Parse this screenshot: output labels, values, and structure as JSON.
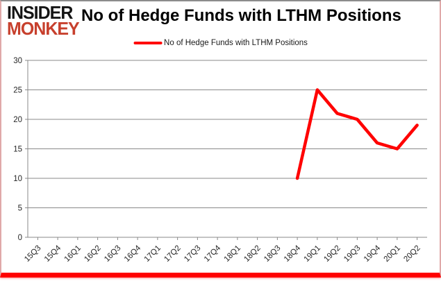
{
  "header": {
    "logo_line1": "INSIDER",
    "logo_line2": "MONKEY",
    "title": "No of Hedge Funds with LTHM Positions"
  },
  "legend": {
    "label": "No of Hedge Funds with LTHM Positions",
    "line_color": "#ff0000"
  },
  "colors": {
    "series_red": "#ff0000",
    "gridline": "#898989",
    "axis": "#898989",
    "tick_label": "#262626",
    "frame_bottom_bar": "#ff0000",
    "frame_top_line": "#8c8c8c",
    "frame_side_line": "#e0a8a8",
    "logo_black": "#151515",
    "logo_red": "#c7402d"
  },
  "chart_data": {
    "type": "line",
    "title": "No of Hedge Funds with LTHM Positions",
    "categories": [
      "15Q3",
      "15Q4",
      "16Q1",
      "16Q2",
      "16Q3",
      "16Q4",
      "17Q1",
      "17Q2",
      "17Q3",
      "17Q4",
      "18Q1",
      "18Q2",
      "18Q3",
      "18Q4",
      "19Q1",
      "19Q2",
      "19Q3",
      "19Q4",
      "20Q1",
      "20Q2"
    ],
    "series": [
      {
        "name": "No of Hedge Funds with LTHM Positions",
        "color": "#ff0000",
        "values": [
          null,
          null,
          null,
          null,
          null,
          null,
          null,
          null,
          null,
          null,
          null,
          null,
          null,
          10,
          25,
          21,
          20,
          16,
          15,
          19
        ]
      }
    ],
    "xlabel": "",
    "ylabel": "",
    "ylim": [
      0,
      30
    ],
    "ytick_interval": 5,
    "yticks": [
      0,
      5,
      10,
      15,
      20,
      25,
      30
    ],
    "grid": true,
    "legend_position": "top-center",
    "x_label_rotation_deg": -45
  }
}
